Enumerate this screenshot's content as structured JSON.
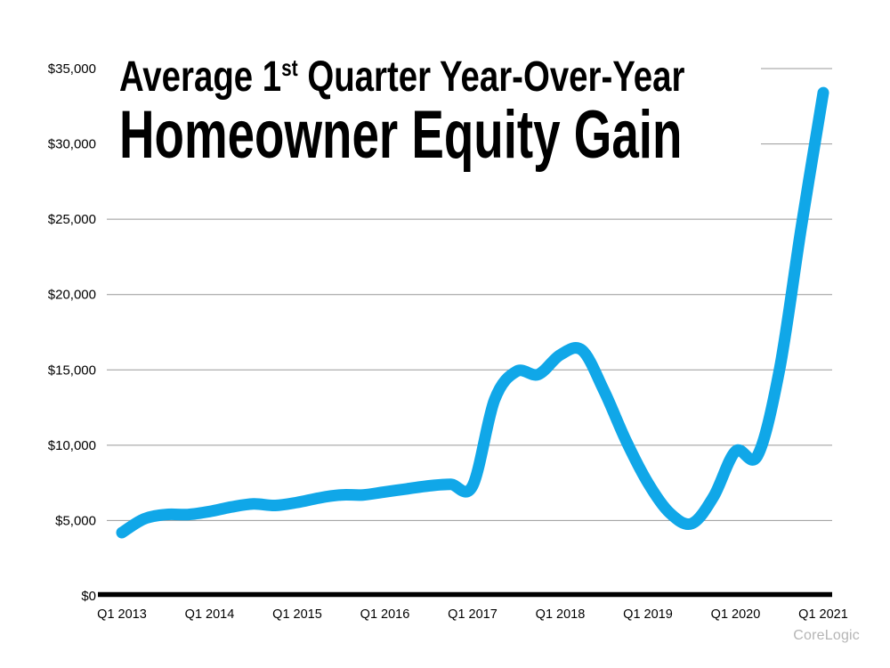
{
  "page": {
    "background": "#ffffff"
  },
  "title": {
    "line1_prefix": "Average 1",
    "line1_superscript": "st",
    "line1_suffix": " Quarter Year-Over-Year",
    "line2": "Homeowner Equity Gain"
  },
  "attribution": "CoreLogic",
  "colors": {
    "line": "#10A7E8",
    "gridline": "#999999",
    "axis": "#000000",
    "label": "#000000",
    "attribution_text": "#b5b5b5"
  },
  "chart_data": {
    "type": "line",
    "title": "Average 1st Quarter Year-Over-Year Homeowner Equity Gain",
    "xlabel": "",
    "ylabel": "",
    "ylim": [
      0,
      35000
    ],
    "y_gridline_step": 5000,
    "grid": "horizontal",
    "legend": "none",
    "source": "CoreLogic",
    "categories": [
      "Q1 2013",
      "Q2 2013",
      "Q3 2013",
      "Q4 2013",
      "Q1 2014",
      "Q2 2014",
      "Q3 2014",
      "Q4 2014",
      "Q1 2015",
      "Q2 2015",
      "Q3 2015",
      "Q4 2015",
      "Q1 2016",
      "Q2 2016",
      "Q3 2016",
      "Q4 2016",
      "Q1 2017",
      "Q2 2017",
      "Q3 2017",
      "Q4 2017",
      "Q1 2018",
      "Q2 2018",
      "Q3 2018",
      "Q4 2018",
      "Q1 2019",
      "Q2 2019",
      "Q3 2019",
      "Q4 2019",
      "Q1 2020",
      "Q2 2020",
      "Q3 2020",
      "Q4 2020",
      "Q1 2021"
    ],
    "series": [
      {
        "name": "Average homeowner equity gain ($)",
        "values": [
          4200,
          5100,
          5400,
          5400,
          5600,
          5900,
          6100,
          6000,
          6200,
          6500,
          6700,
          6700,
          6900,
          7100,
          7300,
          7400,
          7300,
          13000,
          14900,
          14700,
          16000,
          16300,
          13600,
          10300,
          7500,
          5500,
          4800,
          6600,
          9600,
          9300,
          15000,
          24500,
          33400
        ]
      }
    ],
    "x_tick_labels": [
      "Q1 2013",
      "Q1 2014",
      "Q1 2015",
      "Q1 2016",
      "Q1 2017",
      "Q1 2018",
      "Q1 2019",
      "Q1 2020",
      "Q1 2021"
    ],
    "x_tick_every": 4,
    "y_ticks": {
      "values": [
        0,
        5000,
        10000,
        15000,
        20000,
        25000,
        30000,
        35000
      ],
      "labels": [
        "$0",
        "$5,000",
        "$10,000",
        "$15,000",
        "$20,000",
        "$25,000",
        "$30,000",
        "$35,000"
      ]
    }
  }
}
